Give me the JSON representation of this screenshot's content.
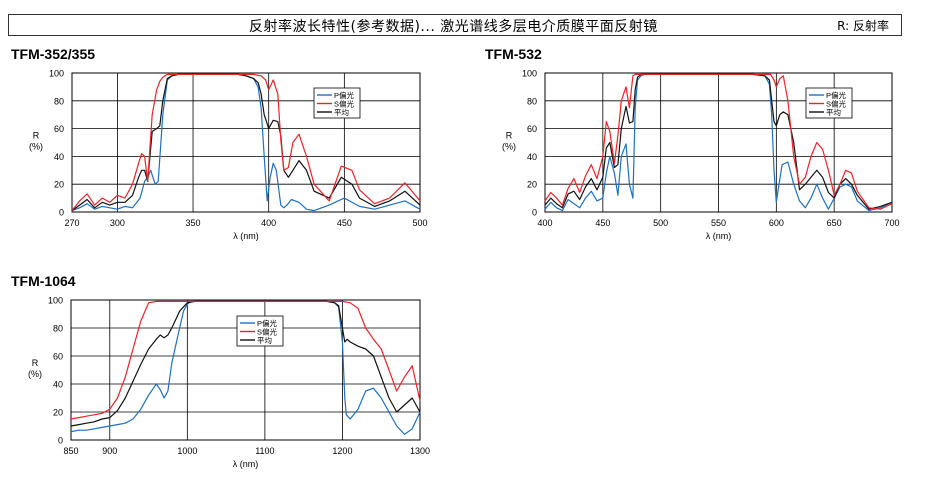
{
  "header": {
    "title": "反射率波长特性(参考数据)... 激光谱线多层电介质膜平面反射镜",
    "right": "R: 反射率"
  },
  "colors": {
    "p": "#1f6fbf",
    "s": "#e8232a",
    "avg": "#111111"
  },
  "chart_data": [
    {
      "type": "line",
      "title": "TFM-352/355",
      "ylabel": "R\n(%)",
      "xlabel": "λ (nm)",
      "xlim": [
        270,
        500
      ],
      "ylim": [
        0,
        100
      ],
      "xticks": [
        270,
        300,
        350,
        400,
        450,
        500
      ],
      "yticks": [
        0,
        20,
        40,
        60,
        80,
        100
      ],
      "grid": true,
      "legend": "top-right",
      "series": [
        {
          "name": "P偏光",
          "key": "p",
          "x": [
            270,
            275,
            280,
            285,
            290,
            295,
            300,
            305,
            310,
            315,
            318,
            320,
            322,
            325,
            327,
            330,
            333,
            336,
            340,
            345,
            350,
            360,
            370,
            380,
            385,
            390,
            393,
            395,
            397,
            399,
            401,
            403,
            405,
            408,
            410,
            412,
            415,
            420,
            425,
            430,
            440,
            450,
            460,
            470,
            480,
            490,
            500
          ],
          "y": [
            1,
            3,
            6,
            2,
            4,
            3,
            2,
            4,
            3,
            10,
            22,
            25,
            30,
            20,
            22,
            70,
            95,
            98,
            99,
            99,
            99,
            99,
            99,
            99,
            98,
            96,
            90,
            75,
            40,
            8,
            25,
            35,
            30,
            5,
            3,
            5,
            9,
            7,
            2,
            1,
            5,
            10,
            4,
            2,
            5,
            8,
            2
          ]
        },
        {
          "name": "S偏光",
          "key": "s",
          "x": [
            270,
            275,
            280,
            285,
            290,
            295,
            300,
            305,
            310,
            314,
            316,
            318,
            320,
            323,
            326,
            328,
            330,
            333,
            336,
            340,
            350,
            360,
            370,
            380,
            390,
            395,
            398,
            400,
            403,
            406,
            408,
            410,
            413,
            416,
            420,
            425,
            430,
            440,
            448,
            455,
            460,
            470,
            480,
            490,
            500
          ],
          "y": [
            1,
            8,
            13,
            5,
            10,
            7,
            12,
            10,
            20,
            35,
            42,
            40,
            22,
            70,
            88,
            94,
            97,
            99,
            99,
            99,
            99,
            99,
            99,
            99,
            99,
            98,
            95,
            88,
            95,
            85,
            52,
            30,
            32,
            50,
            56,
            40,
            20,
            8,
            33,
            30,
            16,
            6,
            10,
            21,
            8
          ]
        },
        {
          "name": "平均",
          "key": "avg",
          "x": [
            270,
            275,
            280,
            285,
            290,
            295,
            300,
            305,
            310,
            314,
            316,
            318,
            320,
            323,
            326,
            328,
            330,
            333,
            336,
            340,
            350,
            360,
            370,
            380,
            385,
            390,
            393,
            395,
            397,
            400,
            403,
            406,
            408,
            410,
            413,
            416,
            420,
            425,
            430,
            440,
            448,
            455,
            460,
            470,
            480,
            490,
            500
          ],
          "y": [
            1,
            5,
            9,
            3,
            7,
            5,
            7,
            7,
            12,
            25,
            30,
            30,
            22,
            58,
            60,
            62,
            80,
            96,
            98,
            99,
            99,
            99,
            99,
            99,
            98,
            96,
            93,
            85,
            70,
            60,
            66,
            65,
            55,
            30,
            25,
            30,
            37,
            30,
            15,
            10,
            25,
            20,
            10,
            4,
            8,
            15,
            5
          ]
        }
      ]
    },
    {
      "type": "line",
      "title": "TFM-532",
      "ylabel": "R\n(%)",
      "xlabel": "λ (nm)",
      "xlim": [
        400,
        700
      ],
      "ylim": [
        0,
        100
      ],
      "xticks": [
        400,
        450,
        500,
        550,
        600,
        650,
        700
      ],
      "yticks": [
        0,
        20,
        40,
        60,
        80,
        100
      ],
      "grid": true,
      "legend": "top-right",
      "series": [
        {
          "name": "P偏光",
          "key": "p",
          "x": [
            400,
            405,
            410,
            415,
            420,
            425,
            430,
            435,
            440,
            445,
            450,
            453,
            456,
            460,
            463,
            466,
            470,
            473,
            476,
            478,
            480,
            483,
            486,
            490,
            495,
            500,
            520,
            540,
            560,
            580,
            590,
            594,
            596,
            598,
            600,
            602,
            605,
            610,
            615,
            620,
            625,
            630,
            635,
            640,
            645,
            650,
            655,
            660,
            665,
            670,
            680,
            690,
            700
          ],
          "y": [
            2,
            7,
            3,
            1,
            9,
            6,
            3,
            10,
            15,
            8,
            10,
            28,
            40,
            28,
            12,
            40,
            49,
            20,
            10,
            75,
            95,
            98,
            99,
            99,
            99,
            99,
            99,
            99,
            99,
            99,
            98,
            92,
            70,
            30,
            7,
            18,
            34,
            36,
            20,
            8,
            3,
            10,
            20,
            10,
            2,
            10,
            18,
            20,
            18,
            8,
            1,
            3,
            7
          ]
        },
        {
          "name": "S偏光",
          "key": "s",
          "x": [
            400,
            405,
            410,
            415,
            420,
            425,
            430,
            435,
            440,
            445,
            450,
            453,
            456,
            460,
            463,
            466,
            470,
            473,
            476,
            478,
            480,
            483,
            486,
            490,
            495,
            500,
            520,
            540,
            560,
            580,
            590,
            595,
            598,
            600,
            603,
            606,
            610,
            615,
            620,
            625,
            630,
            635,
            640,
            645,
            650,
            655,
            660,
            665,
            670,
            680,
            690,
            700
          ],
          "y": [
            8,
            14,
            10,
            5,
            17,
            24,
            14,
            26,
            34,
            24,
            40,
            65,
            58,
            35,
            55,
            80,
            90,
            75,
            98,
            99,
            99,
            99,
            99,
            99,
            99,
            99,
            99,
            99,
            99,
            99,
            99,
            99,
            95,
            90,
            96,
            98,
            80,
            40,
            20,
            25,
            40,
            50,
            45,
            30,
            12,
            20,
            30,
            28,
            15,
            3,
            2,
            6
          ]
        },
        {
          "name": "平均",
          "key": "avg",
          "x": [
            400,
            405,
            410,
            415,
            420,
            425,
            430,
            435,
            440,
            445,
            450,
            453,
            456,
            460,
            463,
            466,
            470,
            473,
            476,
            478,
            480,
            483,
            486,
            490,
            495,
            500,
            520,
            540,
            560,
            580,
            590,
            594,
            596,
            598,
            600,
            603,
            606,
            610,
            615,
            620,
            625,
            630,
            635,
            640,
            645,
            650,
            655,
            660,
            665,
            670,
            680,
            690,
            700
          ],
          "y": [
            5,
            10,
            6,
            3,
            13,
            15,
            9,
            18,
            24,
            16,
            25,
            46,
            50,
            32,
            34,
            60,
            76,
            64,
            65,
            88,
            97,
            99,
            99,
            99,
            99,
            99,
            99,
            99,
            99,
            99,
            98,
            95,
            80,
            65,
            62,
            70,
            72,
            70,
            50,
            16,
            20,
            25,
            30,
            25,
            14,
            10,
            20,
            24,
            20,
            12,
            2,
            4,
            7
          ]
        }
      ]
    },
    {
      "type": "line",
      "title": "TFM-1064",
      "ylabel": "R\n(%)",
      "xlabel": "λ (nm)",
      "xlim": [
        850,
        1300
      ],
      "ylim": [
        0,
        100
      ],
      "xticks": [
        850,
        900,
        1000,
        1100,
        1200,
        1300
      ],
      "yticks": [
        0,
        20,
        40,
        60,
        80,
        100
      ],
      "grid": true,
      "legend": "top-right",
      "series": [
        {
          "name": "P偏光",
          "key": "p",
          "x": [
            850,
            860,
            870,
            880,
            890,
            900,
            910,
            920,
            930,
            940,
            950,
            960,
            965,
            970,
            975,
            980,
            990,
            995,
            1000,
            1005,
            1010,
            1020,
            1040,
            1060,
            1080,
            1100,
            1120,
            1140,
            1160,
            1180,
            1190,
            1195,
            1200,
            1203,
            1205,
            1210,
            1220,
            1230,
            1240,
            1250,
            1260,
            1270,
            1280,
            1290,
            1300
          ],
          "y": [
            6,
            7,
            7,
            8,
            9,
            10,
            11,
            12,
            15,
            22,
            32,
            40,
            36,
            30,
            35,
            55,
            80,
            92,
            97,
            99,
            99,
            99,
            99,
            99,
            99,
            99,
            99,
            99,
            99,
            99,
            98,
            95,
            70,
            30,
            18,
            15,
            22,
            35,
            37,
            30,
            20,
            10,
            4,
            8,
            20
          ]
        },
        {
          "name": "S偏光",
          "key": "s",
          "x": [
            850,
            860,
            870,
            880,
            890,
            900,
            910,
            920,
            930,
            940,
            950,
            960,
            970,
            980,
            990,
            1000,
            1010,
            1020,
            1040,
            1060,
            1080,
            1100,
            1120,
            1140,
            1160,
            1180,
            1190,
            1200,
            1210,
            1220,
            1230,
            1240,
            1250,
            1260,
            1270,
            1280,
            1290,
            1300
          ],
          "y": [
            15,
            16,
            17,
            18,
            19,
            22,
            30,
            45,
            65,
            85,
            98,
            99,
            99,
            99,
            99,
            99,
            99,
            99,
            99,
            99,
            99,
            99,
            99,
            99,
            99,
            99,
            99,
            99,
            98,
            94,
            80,
            72,
            65,
            50,
            35,
            45,
            53,
            28
          ]
        },
        {
          "name": "平均",
          "key": "avg",
          "x": [
            850,
            860,
            870,
            880,
            890,
            900,
            910,
            920,
            930,
            940,
            950,
            960,
            965,
            970,
            975,
            980,
            990,
            1000,
            1010,
            1020,
            1040,
            1060,
            1080,
            1100,
            1120,
            1140,
            1160,
            1180,
            1190,
            1195,
            1200,
            1203,
            1206,
            1210,
            1220,
            1230,
            1240,
            1250,
            1260,
            1270,
            1280,
            1290,
            1300
          ],
          "y": [
            10,
            11,
            12,
            13,
            15,
            16,
            21,
            30,
            42,
            54,
            65,
            72,
            75,
            73,
            75,
            80,
            92,
            98,
            99,
            99,
            99,
            99,
            99,
            99,
            99,
            99,
            99,
            99,
            98,
            96,
            80,
            70,
            72,
            70,
            67,
            65,
            60,
            45,
            30,
            20,
            25,
            30,
            20
          ]
        }
      ]
    }
  ]
}
